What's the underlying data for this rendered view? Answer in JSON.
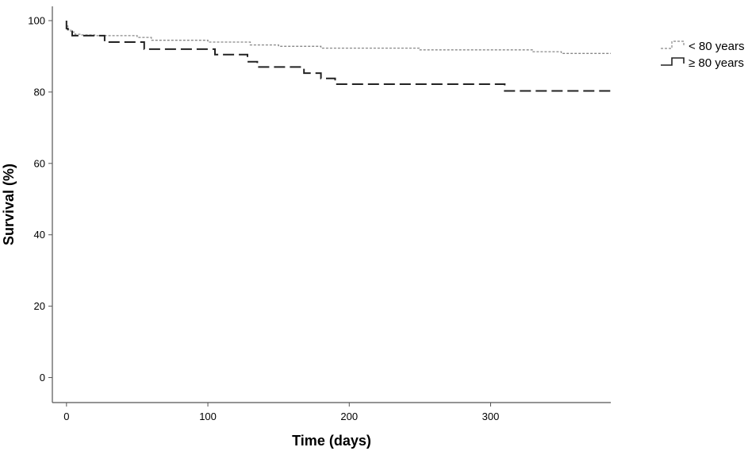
{
  "chart_data": {
    "type": "line",
    "title": "",
    "xlabel": "Time (days)",
    "ylabel": "Survival (%)",
    "xlim": [
      -10,
      385
    ],
    "ylim": [
      -7,
      104
    ],
    "x_ticks": [
      0,
      100,
      200,
      300
    ],
    "y_ticks": [
      0,
      20,
      40,
      60,
      80,
      100
    ],
    "grid": false,
    "legend_position": "right",
    "series": [
      {
        "name": "< 80 years",
        "style": "dotted",
        "color": "#888888",
        "x": [
          0,
          1,
          1,
          3,
          3,
          6,
          6,
          10,
          10,
          20,
          20,
          50,
          50,
          60,
          60,
          100,
          100,
          130,
          130,
          150,
          150,
          180,
          180,
          250,
          250,
          330,
          330,
          350,
          350,
          385
        ],
        "y": [
          98.5,
          98.5,
          97.5,
          97.5,
          96.8,
          96.8,
          96.2,
          96.2,
          96.0,
          96.0,
          95.8,
          95.8,
          95.3,
          95.3,
          94.5,
          94.5,
          94.0,
          94.0,
          93.2,
          93.2,
          92.8,
          92.8,
          92.3,
          92.3,
          91.8,
          91.8,
          91.3,
          91.3,
          90.8,
          90.8
        ]
      },
      {
        "name": "≥ 80 years",
        "style": "dashed",
        "color": "#222222",
        "x": [
          0,
          0,
          1,
          1,
          4,
          4,
          10,
          10,
          27,
          27,
          55,
          55,
          105,
          105,
          128,
          128,
          135,
          135,
          168,
          168,
          180,
          180,
          190,
          190,
          310,
          310,
          385
        ],
        "y": [
          100,
          97.8,
          97.8,
          97.0,
          97.0,
          95.8,
          95.8,
          95.8,
          95.8,
          94.0,
          94.0,
          92.0,
          92.0,
          90.5,
          90.5,
          88.5,
          88.5,
          87.0,
          87.0,
          85.3,
          85.3,
          83.8,
          83.8,
          82.2,
          82.2,
          80.3,
          80.3
        ]
      }
    ]
  }
}
